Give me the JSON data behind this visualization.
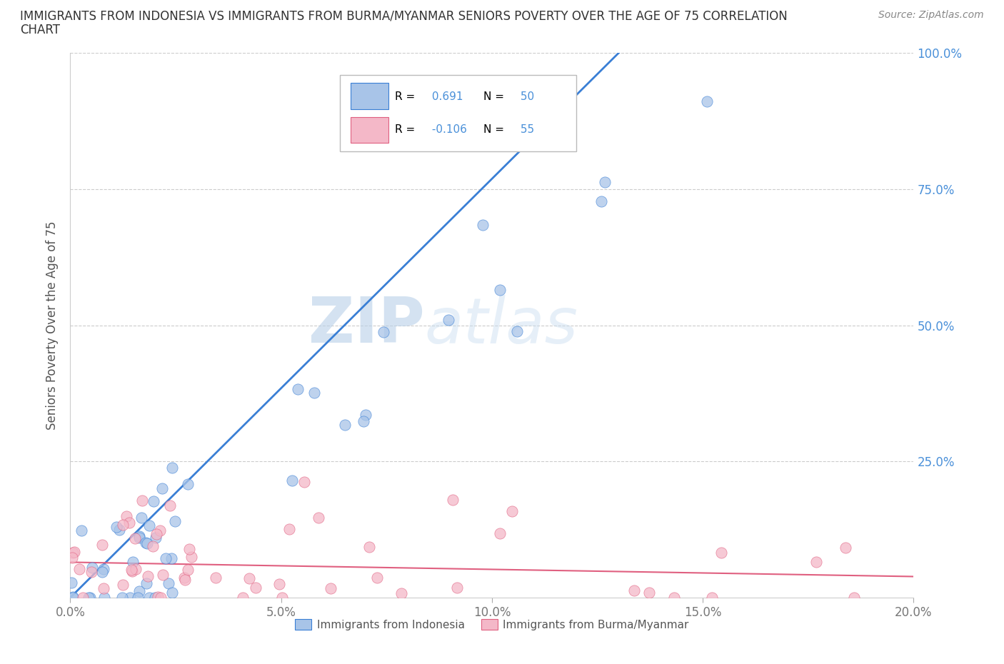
{
  "title_line1": "IMMIGRANTS FROM INDONESIA VS IMMIGRANTS FROM BURMA/MYANMAR SENIORS POVERTY OVER THE AGE OF 75 CORRELATION",
  "title_line2": "CHART",
  "source": "Source: ZipAtlas.com",
  "ylabel": "Seniors Poverty Over the Age of 75",
  "xlim": [
    0.0,
    0.2
  ],
  "ylim": [
    0.0,
    1.0
  ],
  "xticks": [
    0.0,
    0.05,
    0.1,
    0.15,
    0.2
  ],
  "xticklabels": [
    "0.0%",
    "5.0%",
    "10.0%",
    "15.0%",
    "20.0%"
  ],
  "yticks": [
    0.0,
    0.25,
    0.5,
    0.75,
    1.0
  ],
  "right_yticklabels": [
    "",
    "25.0%",
    "50.0%",
    "75.0%",
    "100.0%"
  ],
  "indonesia_color": "#a8c4e8",
  "burma_color": "#f4b8c8",
  "indonesia_trendline_color": "#3a7fd5",
  "burma_trendline_color": "#e06080",
  "legend_indonesia_label": "Immigrants from Indonesia",
  "legend_burma_label": "Immigrants from Burma/Myanmar",
  "r_indonesia": 0.691,
  "n_indonesia": 50,
  "r_burma": -0.106,
  "n_burma": 55,
  "watermark_zip": "ZIP",
  "watermark_atlas": "atlas",
  "background_color": "#ffffff",
  "grid_color": "#cccccc",
  "title_color": "#333333",
  "axis_label_color": "#555555",
  "tick_color": "#4a90d9",
  "xtick_color": "#777777"
}
